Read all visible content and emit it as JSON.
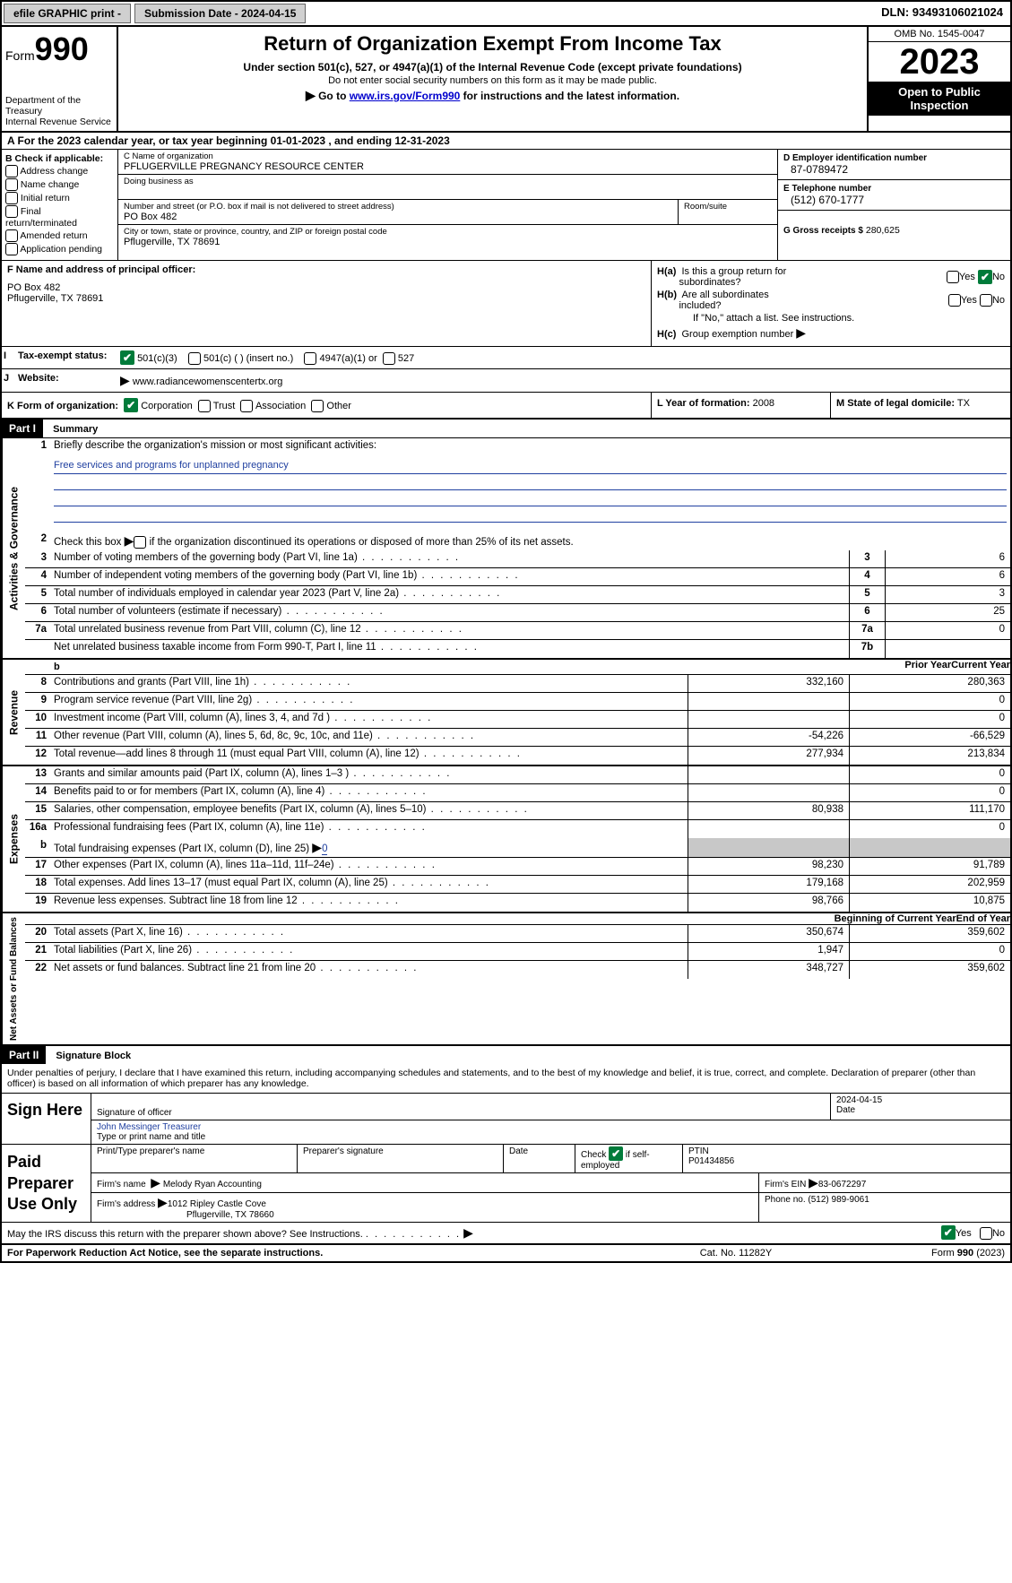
{
  "topbar": {
    "efile": "efile GRAPHIC print -",
    "submission": "Submission Date - 2024-04-15",
    "dln": "DLN: 93493106021024"
  },
  "header": {
    "form_prefix": "Form",
    "form_num": "990",
    "dept": "Department of the Treasury",
    "irs": "Internal Revenue Service",
    "title": "Return of Organization Exempt From Income Tax",
    "sub1": "Under section 501(c), 527, or 4947(a)(1) of the Internal Revenue Code (except private foundations)",
    "sub2": "Do not enter social security numbers on this form as it may be made public.",
    "sub3_pre": "Go to ",
    "sub3_link": "www.irs.gov/Form990",
    "sub3_post": " for instructions and the latest information.",
    "omb": "OMB No. 1545-0047",
    "year": "2023",
    "open1": "Open to Public",
    "open2": "Inspection"
  },
  "row_a": "A    For the 2023 calendar year, or tax year beginning 01-01-2023    , and ending 12-31-2023",
  "b": {
    "title": "B Check if applicable:",
    "opts": [
      "Address change",
      "Name change",
      "Initial return",
      "Final return/terminated",
      "Amended return",
      "Application pending"
    ]
  },
  "c": {
    "name_lbl": "C Name of organization",
    "name": "PFLUGERVILLE PREGNANCY RESOURCE CENTER",
    "dba_lbl": "Doing business as",
    "addr_lbl": "Number and street (or P.O. box if mail is not delivered to street address)",
    "addr": "PO Box 482",
    "room_lbl": "Room/suite",
    "city_lbl": "City or town, state or province, country, and ZIP or foreign postal code",
    "city": "Pflugerville, TX  78691"
  },
  "d": {
    "ein_lbl": "D Employer identification number",
    "ein": "87-0789472",
    "tel_lbl": "E Telephone number",
    "tel": "(512) 670-1777",
    "gross_lbl": "G Gross receipts $",
    "gross": "280,625"
  },
  "f": {
    "lbl": "F  Name and address of principal officer:",
    "line1": "PO Box 482",
    "line2": "Pflugerville, TX  78691"
  },
  "h": {
    "a": "H(a)  Is this a group return for subordinates?",
    "b": "H(b)  Are all subordinates included?",
    "note": "If \"No,\" attach a list. See instructions.",
    "c": "H(c)  Group exemption number",
    "yes": "Yes",
    "no": "No"
  },
  "i": {
    "lbl": "Tax-exempt status:",
    "o1": "501(c)(3)",
    "o2": "501(c) (  ) (insert no.)",
    "o3": "4947(a)(1) or",
    "o4": "527"
  },
  "j": {
    "lbl": "Website:",
    "val": "www.radiancewomenscentertx.org"
  },
  "k": {
    "lbl": "K Form of organization:",
    "o1": "Corporation",
    "o2": "Trust",
    "o3": "Association",
    "o4": "Other"
  },
  "l": {
    "lbl": "L Year of formation:",
    "val": "2008"
  },
  "m": {
    "lbl": "M State of legal domicile:",
    "val": "TX"
  },
  "part1": {
    "tag": "Part I",
    "title": "Summary",
    "side_ag": "Activities & Governance",
    "side_rev": "Revenue",
    "side_exp": "Expenses",
    "side_na": "Net Assets or Fund Balances",
    "l1": "Briefly describe the organization's mission or most significant activities:",
    "mission": "Free services and programs for unplanned pregnancy",
    "l2": "Check this box",
    "l2b": "if the organization discontinued its operations or disposed of more than 25% of its net assets.",
    "rows_ag": [
      {
        "n": "3",
        "d": "Number of voting members of the governing body (Part VI, line 1a)",
        "c": "3",
        "v": "6"
      },
      {
        "n": "4",
        "d": "Number of independent voting members of the governing body (Part VI, line 1b)",
        "c": "4",
        "v": "6"
      },
      {
        "n": "5",
        "d": "Total number of individuals employed in calendar year 2023 (Part V, line 2a)",
        "c": "5",
        "v": "3"
      },
      {
        "n": "6",
        "d": "Total number of volunteers (estimate if necessary)",
        "c": "6",
        "v": "25"
      },
      {
        "n": "7a",
        "d": "Total unrelated business revenue from Part VIII, column (C), line 12",
        "c": "7a",
        "v": "0"
      },
      {
        "n": "",
        "d": "Net unrelated business taxable income from Form 990-T, Part I, line 11",
        "c": "7b",
        "v": ""
      }
    ],
    "hdr_prior": "Prior Year",
    "hdr_curr": "Current Year",
    "rows_rev": [
      {
        "n": "8",
        "d": "Contributions and grants (Part VIII, line 1h)",
        "p": "332,160",
        "c": "280,363"
      },
      {
        "n": "9",
        "d": "Program service revenue (Part VIII, line 2g)",
        "p": "",
        "c": "0"
      },
      {
        "n": "10",
        "d": "Investment income (Part VIII, column (A), lines 3, 4, and 7d )",
        "p": "",
        "c": "0"
      },
      {
        "n": "11",
        "d": "Other revenue (Part VIII, column (A), lines 5, 6d, 8c, 9c, 10c, and 11e)",
        "p": "-54,226",
        "c": "-66,529"
      },
      {
        "n": "12",
        "d": "Total revenue—add lines 8 through 11 (must equal Part VIII, column (A), line 12)",
        "p": "277,934",
        "c": "213,834"
      }
    ],
    "rows_exp": [
      {
        "n": "13",
        "d": "Grants and similar amounts paid (Part IX, column (A), lines 1–3 )",
        "p": "",
        "c": "0"
      },
      {
        "n": "14",
        "d": "Benefits paid to or for members (Part IX, column (A), line 4)",
        "p": "",
        "c": "0"
      },
      {
        "n": "15",
        "d": "Salaries, other compensation, employee benefits (Part IX, column (A), lines 5–10)",
        "p": "80,938",
        "c": "111,170"
      },
      {
        "n": "16a",
        "d": "Professional fundraising fees (Part IX, column (A), line 11e)",
        "p": "",
        "c": "0"
      }
    ],
    "l16b_pre": "Total fundraising expenses (Part IX, column (D), line 25)",
    "l16b_val": "0",
    "rows_exp2": [
      {
        "n": "17",
        "d": "Other expenses (Part IX, column (A), lines 11a–11d, 11f–24e)",
        "p": "98,230",
        "c": "91,789"
      },
      {
        "n": "18",
        "d": "Total expenses. Add lines 13–17 (must equal Part IX, column (A), line 25)",
        "p": "179,168",
        "c": "202,959"
      },
      {
        "n": "19",
        "d": "Revenue less expenses. Subtract line 18 from line 12",
        "p": "98,766",
        "c": "10,875"
      }
    ],
    "hdr_beg": "Beginning of Current Year",
    "hdr_end": "End of Year",
    "rows_na": [
      {
        "n": "20",
        "d": "Total assets (Part X, line 16)",
        "p": "350,674",
        "c": "359,602"
      },
      {
        "n": "21",
        "d": "Total liabilities (Part X, line 26)",
        "p": "1,947",
        "c": "0"
      },
      {
        "n": "22",
        "d": "Net assets or fund balances. Subtract line 21 from line 20",
        "p": "348,727",
        "c": "359,602"
      }
    ]
  },
  "part2": {
    "tag": "Part II",
    "title": "Signature Block",
    "decl": "Under penalties of perjury, I declare that I have examined this return, including accompanying schedules and statements, and to the best of my knowledge and belief, it is true, correct, and complete. Declaration of preparer (other than officer) is based on all information of which preparer has any knowledge."
  },
  "sign": {
    "here": "Sign Here",
    "sig_lbl": "Signature of officer",
    "officer": "John Messinger  Treasurer",
    "type_lbl": "Type or print name and title",
    "date_lbl": "Date",
    "date": "2024-04-15"
  },
  "paid": {
    "title": "Paid Preparer Use Only",
    "h1": "Print/Type preparer's name",
    "h2": "Preparer's signature",
    "h3": "Date",
    "h4_pre": "Check",
    "h4_post": "if self-employed",
    "h5": "PTIN",
    "ptin": "P01434856",
    "firm_lbl": "Firm's name",
    "firm": "Melody Ryan Accounting",
    "ein_lbl": "Firm's EIN",
    "ein": "83-0672297",
    "addr_lbl": "Firm's address",
    "addr1": "1012 Ripley Castle Cove",
    "addr2": "Pflugerville, TX  78660",
    "phone_lbl": "Phone no.",
    "phone": "(512) 989-9061"
  },
  "discuss": {
    "q": "May the IRS discuss this return with the preparer shown above? See Instructions.",
    "yes": "Yes",
    "no": "No"
  },
  "footer": {
    "l": "For Paperwork Reduction Act Notice, see the separate instructions.",
    "m": "Cat. No. 11282Y",
    "r_pre": "Form ",
    "r_num": "990",
    "r_post": " (2023)"
  }
}
